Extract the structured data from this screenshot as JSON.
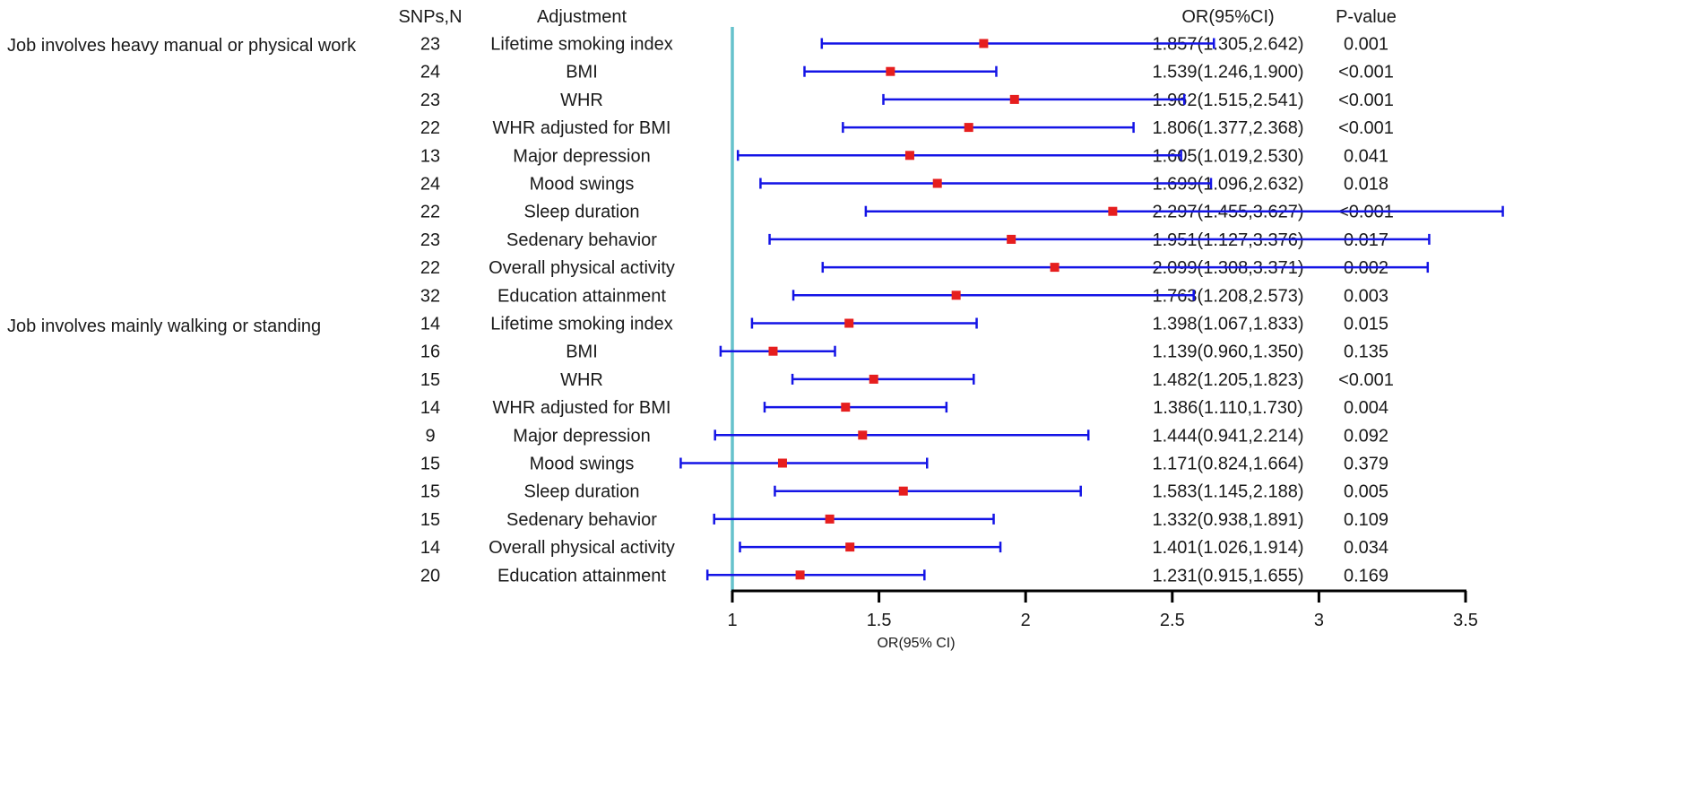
{
  "chart_data": {
    "type": "forest",
    "title": "",
    "xlabel": "OR(95% CI)",
    "xlim": [
      1,
      3.5
    ],
    "reference_line": 1,
    "xticks": [
      1,
      1.5,
      2,
      2.5,
      3,
      3.5
    ],
    "xtick_labels": [
      "1",
      "1.5",
      "2",
      "2.5",
      "3",
      "3.5"
    ],
    "headers": {
      "snps": "SNPs,N",
      "adjustment": "Adjustment",
      "or": "OR(95%CI)",
      "pvalue": "P-value"
    },
    "colors": {
      "reference_line": "#66C2CC",
      "ci_line": "#1414E6",
      "point": "#E61E1E",
      "axis": "#000000"
    },
    "groups": [
      {
        "label": "Job involves heavy manual or physical work",
        "rows": [
          {
            "snps": "23",
            "adjustment": "Lifetime smoking index",
            "or": 1.857,
            "lo": 1.305,
            "hi": 2.642,
            "or_text": "1.857(1.305,2.642)",
            "p": "0.001"
          },
          {
            "snps": "24",
            "adjustment": "BMI",
            "or": 1.539,
            "lo": 1.246,
            "hi": 1.9,
            "or_text": "1.539(1.246,1.900)",
            "p": "<0.001"
          },
          {
            "snps": "23",
            "adjustment": "WHR",
            "or": 1.962,
            "lo": 1.515,
            "hi": 2.541,
            "or_text": "1.962(1.515,2.541)",
            "p": "<0.001"
          },
          {
            "snps": "22",
            "adjustment": "WHR adjusted for BMI",
            "or": 1.806,
            "lo": 1.377,
            "hi": 2.368,
            "or_text": "1.806(1.377,2.368)",
            "p": "<0.001"
          },
          {
            "snps": "13",
            "adjustment": "Major depression",
            "or": 1.605,
            "lo": 1.019,
            "hi": 2.53,
            "or_text": "1.605(1.019,2.530)",
            "p": "0.041"
          },
          {
            "snps": "24",
            "adjustment": "Mood swings",
            "or": 1.699,
            "lo": 1.096,
            "hi": 2.632,
            "or_text": "1.699(1.096,2.632)",
            "p": "0.018"
          },
          {
            "snps": "22",
            "adjustment": "Sleep duration",
            "or": 2.297,
            "lo": 1.455,
            "hi": 3.627,
            "or_text": "2.297(1.455,3.627)",
            "p": "<0.001"
          },
          {
            "snps": "23",
            "adjustment": "Sedenary behavior",
            "or": 1.951,
            "lo": 1.127,
            "hi": 3.376,
            "or_text": "1.951(1.127,3.376)",
            "p": "0.017"
          },
          {
            "snps": "22",
            "adjustment": "Overall physical activity",
            "or": 2.099,
            "lo": 1.308,
            "hi": 3.371,
            "or_text": "2.099(1.308,3.371)",
            "p": "0.002"
          },
          {
            "snps": "32",
            "adjustment": "Education attainment",
            "or": 1.763,
            "lo": 1.208,
            "hi": 2.573,
            "or_text": "1.763(1.208,2.573)",
            "p": "0.003"
          }
        ]
      },
      {
        "label": "Job involves mainly walking or standing",
        "rows": [
          {
            "snps": "14",
            "adjustment": "Lifetime smoking index",
            "or": 1.398,
            "lo": 1.067,
            "hi": 1.833,
            "or_text": "1.398(1.067,1.833)",
            "p": "0.015"
          },
          {
            "snps": "16",
            "adjustment": "BMI",
            "or": 1.139,
            "lo": 0.96,
            "hi": 1.35,
            "or_text": "1.139(0.960,1.350)",
            "p": "0.135"
          },
          {
            "snps": "15",
            "adjustment": "WHR",
            "or": 1.482,
            "lo": 1.205,
            "hi": 1.823,
            "or_text": "1.482(1.205,1.823)",
            "p": "<0.001"
          },
          {
            "snps": "14",
            "adjustment": "WHR adjusted for BMI",
            "or": 1.386,
            "lo": 1.11,
            "hi": 1.73,
            "or_text": "1.386(1.110,1.730)",
            "p": "0.004"
          },
          {
            "snps": "9",
            "adjustment": "Major depression",
            "or": 1.444,
            "lo": 0.941,
            "hi": 2.214,
            "or_text": "1.444(0.941,2.214)",
            "p": "0.092"
          },
          {
            "snps": "15",
            "adjustment": "Mood swings",
            "or": 1.171,
            "lo": 0.824,
            "hi": 1.664,
            "or_text": "1.171(0.824,1.664)",
            "p": "0.379"
          },
          {
            "snps": "15",
            "adjustment": "Sleep duration",
            "or": 1.583,
            "lo": 1.145,
            "hi": 2.188,
            "or_text": "1.583(1.145,2.188)",
            "p": "0.005"
          },
          {
            "snps": "15",
            "adjustment": "Sedenary behavior",
            "or": 1.332,
            "lo": 0.938,
            "hi": 1.891,
            "or_text": "1.332(0.938,1.891)",
            "p": "0.109"
          },
          {
            "snps": "14",
            "adjustment": "Overall physical activity",
            "or": 1.401,
            "lo": 1.026,
            "hi": 1.914,
            "or_text": "1.401(1.026,1.914)",
            "p": "0.034"
          },
          {
            "snps": "20",
            "adjustment": "Education attainment",
            "or": 1.231,
            "lo": 0.915,
            "hi": 1.655,
            "or_text": "1.231(0.915,1.655)",
            "p": "0.169"
          }
        ]
      }
    ]
  }
}
